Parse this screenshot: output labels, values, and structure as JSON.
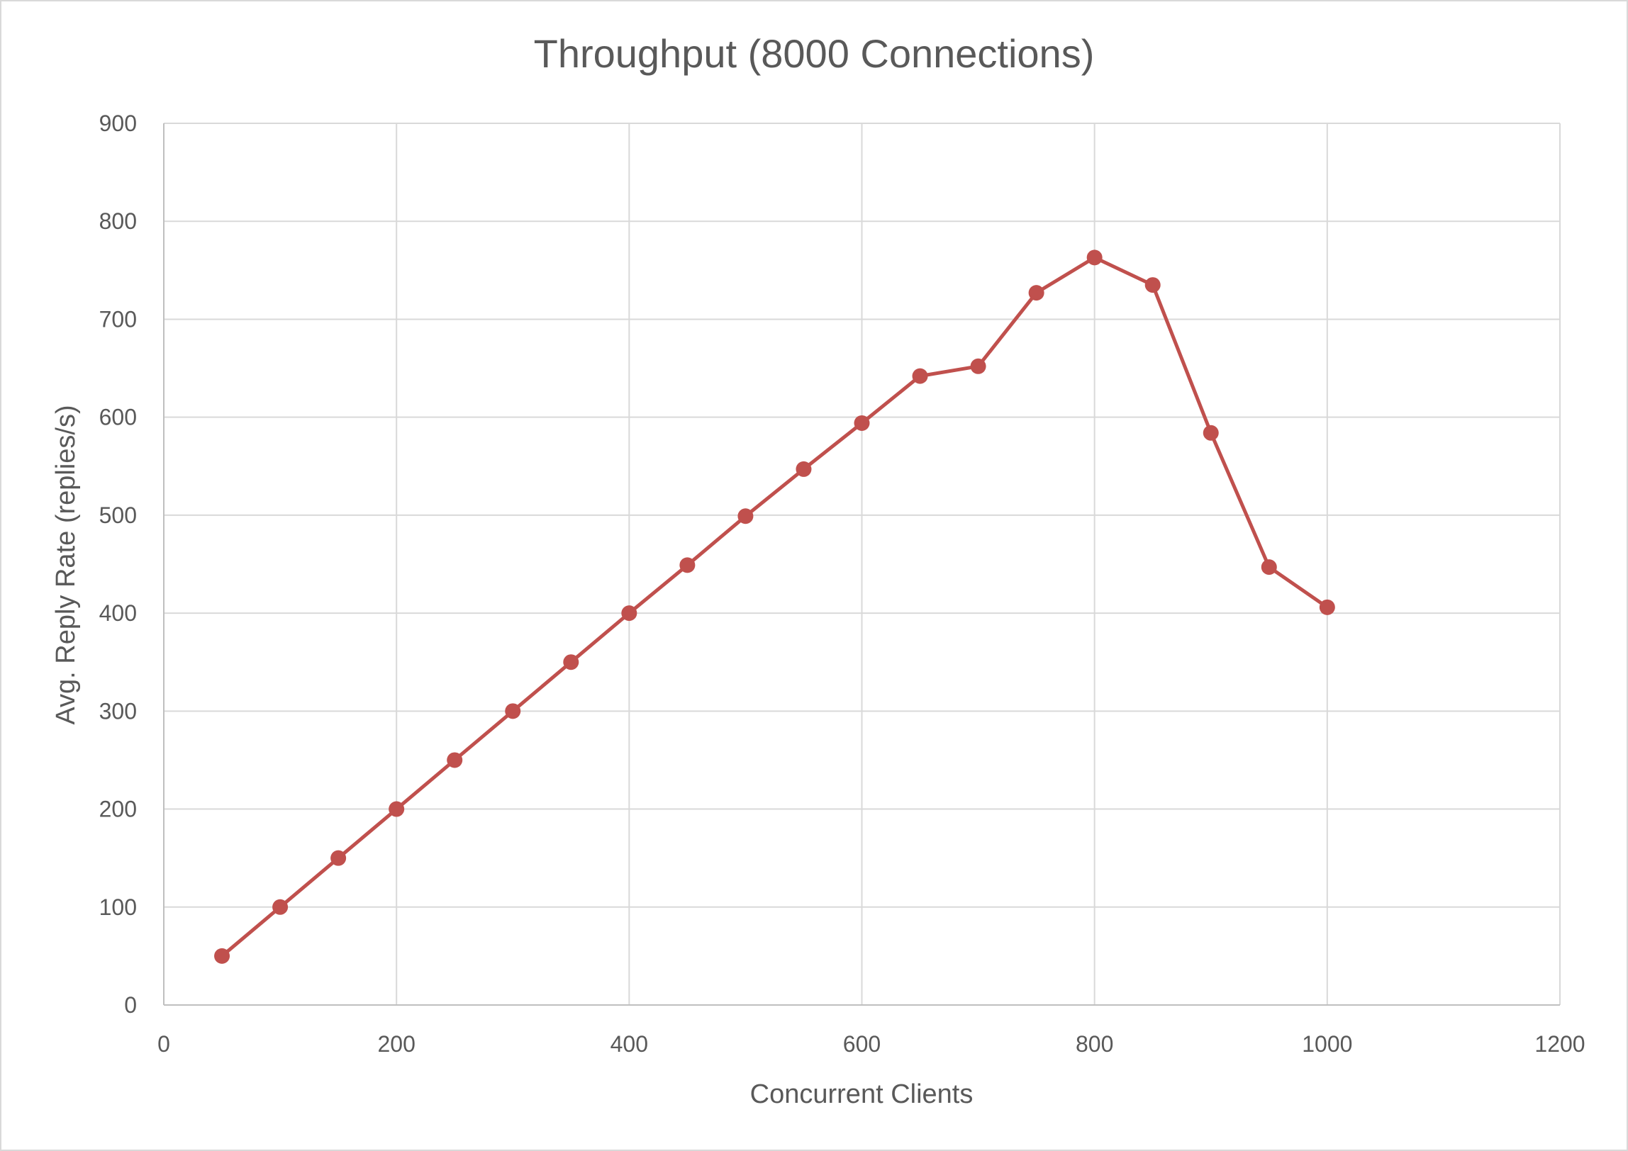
{
  "chart_data": {
    "type": "line",
    "title": "Throughput (8000 Connections)",
    "xlabel": "Concurrent Clients",
    "ylabel": "Avg. Reply Rate (replies/s)",
    "xlim": [
      0,
      1200
    ],
    "ylim": [
      0,
      900
    ],
    "x_ticks": [
      0,
      200,
      400,
      600,
      800,
      1000,
      1200
    ],
    "y_ticks": [
      0,
      100,
      200,
      300,
      400,
      500,
      600,
      700,
      800,
      900
    ],
    "grid": true,
    "legend": "none",
    "series": [
      {
        "color": "#c0504d",
        "marker": "circle",
        "points": [
          {
            "x": 50,
            "y": 50
          },
          {
            "x": 100,
            "y": 100
          },
          {
            "x": 150,
            "y": 150
          },
          {
            "x": 200,
            "y": 200
          },
          {
            "x": 250,
            "y": 250
          },
          {
            "x": 300,
            "y": 300
          },
          {
            "x": 350,
            "y": 350
          },
          {
            "x": 400,
            "y": 400
          },
          {
            "x": 450,
            "y": 449
          },
          {
            "x": 500,
            "y": 499
          },
          {
            "x": 550,
            "y": 547
          },
          {
            "x": 600,
            "y": 594
          },
          {
            "x": 650,
            "y": 642
          },
          {
            "x": 700,
            "y": 652
          },
          {
            "x": 750,
            "y": 727
          },
          {
            "x": 800,
            "y": 763
          },
          {
            "x": 850,
            "y": 735
          },
          {
            "x": 900,
            "y": 584
          },
          {
            "x": 950,
            "y": 447
          },
          {
            "x": 1000,
            "y": 406
          }
        ]
      }
    ]
  }
}
